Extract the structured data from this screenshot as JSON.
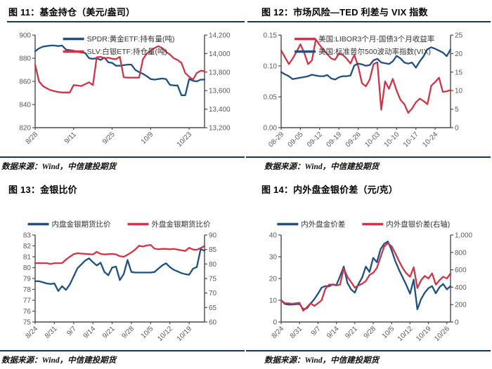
{
  "colors": {
    "blue": "#1f5080",
    "red": "#cd3549",
    "navy_rule": "#16365c",
    "axis": "#4a4a4a",
    "tick_text": "#595959"
  },
  "figures": [
    {
      "title": "图  11：基金持仓（美元/盎司）",
      "source": "数据来源：Wind，中信建投期货"
    },
    {
      "title": "图  12：市场风险—TED 利差与 VIX 指数",
      "source": "数据来源：Wind，中信建投期货"
    },
    {
      "title": "图  13：金银比价",
      "source": "数据来源：Wind，中信建投期货"
    },
    {
      "title": "图  14：内外盘金银价差（元/克）",
      "source": "数据来源：Wind，中信建投期货"
    }
  ],
  "chart_data": [
    {
      "type": "line",
      "title": "基金持仓（美元/盎司）",
      "legend_layout": "stack",
      "legend_position": "top-center",
      "grid": false,
      "x_labels": [
        "8/28",
        "9/11",
        "9/25",
        "10/9",
        "10/23"
      ],
      "label_step": 10,
      "left_axis": {
        "min": 820,
        "max": 900,
        "ticks": [
          "900",
          "880",
          "860",
          "840",
          "820"
        ]
      },
      "right_axis": {
        "min": 13200,
        "max": 14200,
        "ticks": [
          "14,200",
          "14,000",
          "13,800",
          "13,600",
          "13,400",
          "13,200"
        ]
      },
      "series": [
        {
          "name": "SPDR:黄金ETF:持有量(吨)",
          "color": "blue",
          "axis": "left",
          "values": [
            886,
            888.5,
            890,
            890.5,
            891,
            891,
            890.5,
            891,
            887.5,
            887,
            886.5,
            885.5,
            885,
            884.5,
            880,
            879.5,
            880,
            878.5,
            880.5,
            876.5,
            876,
            873.5,
            873.5,
            874,
            874.5,
            874.5,
            870,
            868,
            866.5,
            864.5,
            862,
            861.5,
            862,
            862.5,
            862,
            857,
            856.5,
            856.5,
            848,
            848,
            862,
            860.5,
            860,
            861.5,
            861.5
          ]
        },
        {
          "name": "SLV:白银ETF:持仓量(吨)",
          "color": "red",
          "axis": "right",
          "values": [
            13880,
            13700,
            13650,
            13625,
            13605,
            13595,
            13585,
            13580,
            13580,
            13580,
            13660,
            13655,
            13650,
            13670,
            13690,
            13660,
            13960,
            13965,
            13950,
            13955,
            13945,
            13940,
            13965,
            13745,
            13740,
            13740,
            13740,
            13740,
            13940,
            14000,
            14030,
            14060,
            14080,
            14060,
            14020,
            13990,
            13950,
            13930,
            13900,
            13790,
            13750,
            13720,
            13790,
            13815,
            13810
          ]
        }
      ]
    },
    {
      "type": "line",
      "title": "市场风险—TED 利差与 VIX 指数",
      "legend_layout": "stack",
      "legend_position": "top-center",
      "grid": false,
      "x_labels": [
        "08-29",
        "09-05",
        "09-12",
        "09-19",
        "09-26",
        "10-03",
        "10-10",
        "10-17",
        "10-24"
      ],
      "label_step": 5,
      "left_axis": {
        "min": 0,
        "max": 0.15,
        "ticks": [
          "0.15",
          "0.10",
          "0.05",
          "0.00"
        ]
      },
      "right_axis": {
        "min": 0,
        "max": 25,
        "ticks": [
          "25",
          "20",
          "15",
          "10",
          "5",
          "0"
        ]
      },
      "series": [
        {
          "name": "美国:LIBOR3个月-国债3个月收益率",
          "color": "red",
          "axis": "left",
          "values": [
            0.125,
            0.114,
            0.103,
            0.112,
            0.123,
            0.135,
            0.121,
            0.103,
            0.109,
            0.143,
            0.134,
            0.126,
            0.119,
            0.112,
            0.11,
            0.12,
            0.118,
            0.112,
            0.104,
            0.118,
            0.1,
            0.072,
            0.067,
            0.078,
            0.103,
            0.106,
            0.029,
            0.075,
            0.063,
            0.079,
            0.06,
            0.045,
            0.038,
            0.024,
            0.031,
            0.041,
            0.047,
            0.043,
            0.038,
            0.068,
            0.074,
            0.081,
            0.058,
            0.059,
            0.061
          ]
        },
        {
          "name": "美国:标准普尔500波动率指数(VIX)",
          "color": "blue",
          "axis": "right",
          "values": [
            15,
            14.4,
            13.9,
            13.1,
            13.3,
            13.5,
            13.7,
            13.9,
            14.3,
            14.1,
            13.9,
            13.9,
            14.2,
            13.3,
            13,
            13.6,
            13.9,
            13.9,
            14.1,
            16.8,
            17.3,
            17.1,
            16.7,
            16.9,
            18.2,
            18.6,
            17.6,
            17.4,
            17.2,
            17.9,
            19.4,
            18.7,
            17.6,
            17.3,
            17.6,
            16.2,
            17.9,
            19.3,
            21.2,
            21.7,
            21.3,
            20.8,
            20.3,
            19.3,
            21.1
          ]
        }
      ]
    },
    {
      "type": "line",
      "title": "金银比价",
      "legend_layout": "row",
      "legend_position": "top-center",
      "grid": false,
      "x_labels": [
        "8/24",
        "8/31",
        "9/7",
        "9/14",
        "9/21",
        "9/28",
        "10/5",
        "10/12",
        "10/19"
      ],
      "label_step": 5,
      "left_axis": {
        "min": 75,
        "max": 83,
        "ticks": [
          "83",
          "82",
          "81",
          "80",
          "79",
          "78",
          "77",
          "76",
          "75"
        ]
      },
      "right_axis": {
        "min": 60,
        "max": 90,
        "ticks": [
          "90",
          "85",
          "80",
          "75",
          "70",
          "65",
          "60"
        ]
      },
      "series": [
        {
          "name": "内盘金银期货比价",
          "color": "blue",
          "axis": "left",
          "values": [
            78.75,
            78.75,
            78.65,
            78.55,
            78.5,
            78.55,
            77.85,
            78.3,
            77.95,
            78.45,
            79.2,
            79.95,
            80.3,
            80.65,
            80.85,
            80.5,
            80.2,
            80.45,
            79.6,
            79.3,
            80,
            80.1,
            78.85,
            79.4,
            80.7,
            79.6,
            79.55,
            79.55,
            79.55,
            79.55,
            79.55,
            79.6,
            79.9,
            80.2,
            80.4,
            80.05,
            79.8,
            79.65,
            79.5,
            79.4,
            79.35,
            79.9,
            80.05,
            81.7,
            81.55
          ]
        },
        {
          "name": "外盘金银期货比价",
          "color": "red",
          "axis": "right",
          "values": [
            80.3,
            80.3,
            80.3,
            80.3,
            80,
            80.3,
            80.3,
            80.3,
            81.5,
            82.5,
            83.4,
            83.7,
            83.6,
            83.5,
            83.4,
            83.3,
            84.2,
            83.5,
            83.3,
            83.4,
            83.5,
            83.3,
            82.7,
            82.5,
            83.2,
            84,
            85,
            86.3,
            86,
            86.4,
            86.6,
            85.3,
            85.1,
            85.2,
            85.2,
            85.1,
            85.2,
            85,
            84.7,
            84.5,
            85.6,
            85,
            84.9,
            85.5,
            86.2
          ]
        }
      ]
    },
    {
      "type": "line",
      "title": "内外盘金银价差（元/克）",
      "legend_layout": "row",
      "legend_position": "top-center",
      "grid": false,
      "x_labels": [
        "8/24",
        "8/31",
        "9/7",
        "9/14",
        "9/21",
        "9/28",
        "10/5",
        "10/12",
        "10/19",
        "10/26"
      ],
      "label_step": 5,
      "left_axis": {
        "min": 0,
        "max": 40,
        "ticks": [
          "40",
          "30",
          "20",
          "10",
          "0"
        ]
      },
      "right_axis": {
        "min": 0,
        "max": 1000,
        "ticks": [
          "1,000",
          "800",
          "600",
          "400",
          "200",
          "0"
        ]
      },
      "series": [
        {
          "name": "内外盘金价差",
          "color": "blue",
          "axis": "left",
          "values": [
            10,
            8.3,
            8,
            8,
            8.2,
            8.3,
            5.9,
            6.3,
            8.5,
            10.5,
            13,
            15.8,
            16.5,
            16.4,
            17.3,
            17,
            21,
            25.5,
            18,
            15,
            13.5,
            17.5,
            20.5,
            25.5,
            23,
            29.5,
            27.5,
            33.5,
            36,
            37,
            33,
            28,
            24,
            20.5,
            17,
            13,
            19.5,
            5.8,
            10.5,
            13.5,
            15.5,
            16.5,
            13.2,
            16,
            17.5,
            15,
            16.5
          ]
        },
        {
          "name": "内外盘银价差(右轴)",
          "color": "red",
          "axis": "right",
          "values": [
            250,
            215,
            215,
            210,
            215,
            220,
            130,
            170,
            215,
            185,
            215,
            250,
            380,
            430,
            430,
            420,
            430,
            615,
            520,
            460,
            395,
            420,
            440,
            470,
            540,
            565,
            620,
            750,
            870,
            905,
            870,
            790,
            700,
            620,
            560,
            520,
            630,
            390,
            480,
            530,
            500,
            560,
            430,
            480,
            520,
            500,
            560
          ]
        }
      ]
    }
  ]
}
